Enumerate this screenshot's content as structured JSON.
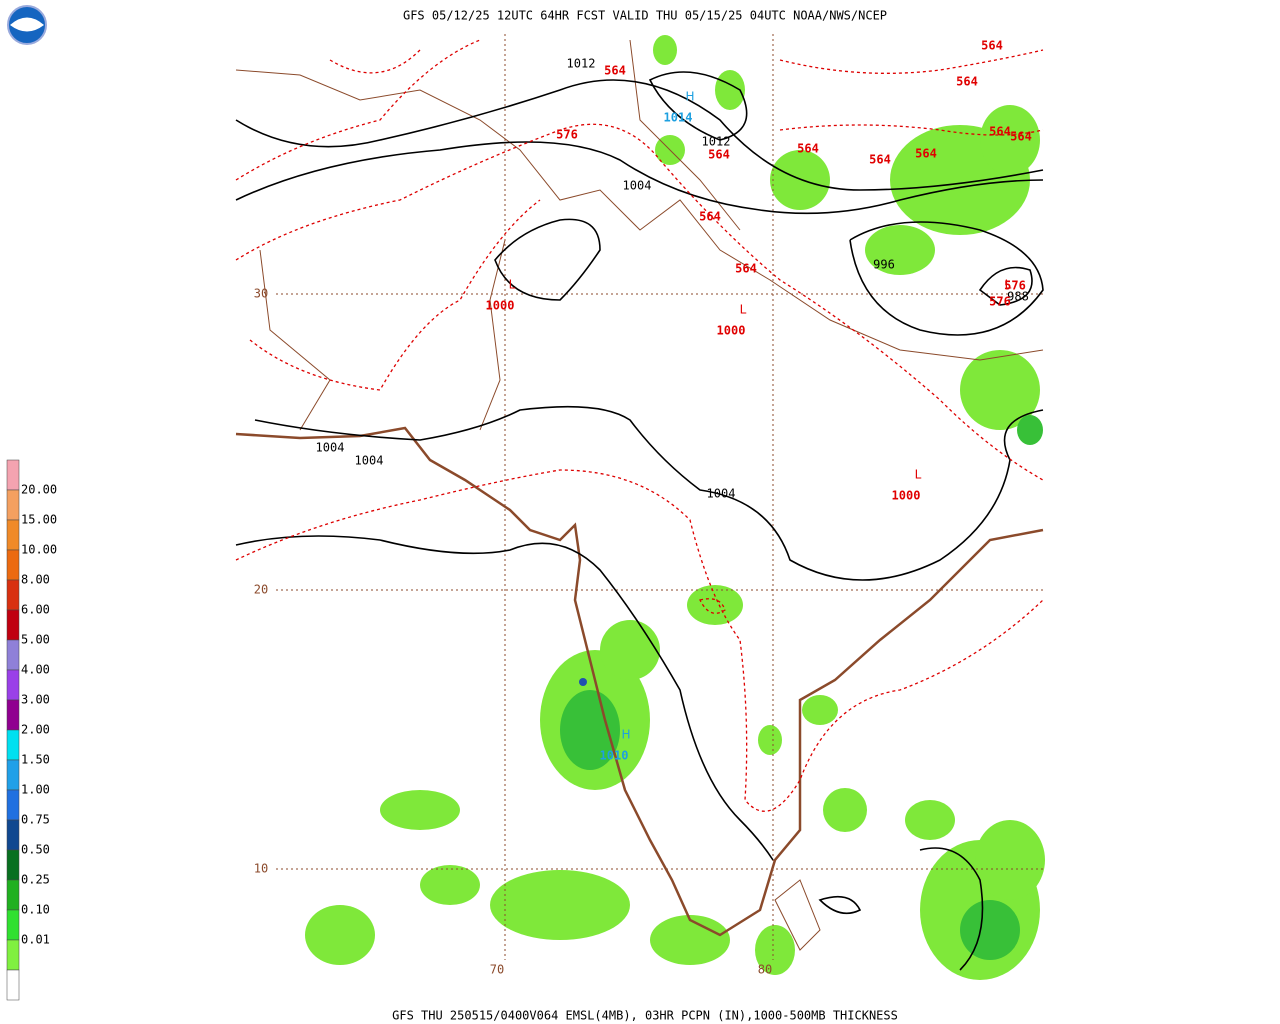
{
  "header": {
    "title": "GFS 05/12/25 12UTC 64HR FCST VALID THU 05/15/25 04UTC NOAA/NWS/NCEP"
  },
  "footer": {
    "caption": "GFS THU 250515/0400V064 EMSL(4MB), 03HR PCPN (IN),1000-500MB THICKNESS"
  },
  "legend": {
    "items": [
      {
        "label": null,
        "color": "#f4a3b0"
      },
      {
        "label": "20.00",
        "color": "#f4a060"
      },
      {
        "label": "15.00",
        "color": "#f08a28"
      },
      {
        "label": "10.00",
        "color": "#ec6a10"
      },
      {
        "label": "8.00",
        "color": "#d83010"
      },
      {
        "label": "6.00",
        "color": "#c00010"
      },
      {
        "label": "5.00",
        "color": "#8f80d8"
      },
      {
        "label": "4.00",
        "color": "#9a40e8"
      },
      {
        "label": "3.00",
        "color": "#900090"
      },
      {
        "label": "2.00",
        "color": "#00e0f0"
      },
      {
        "label": "1.50",
        "color": "#20a0e8"
      },
      {
        "label": "1.00",
        "color": "#2070e0"
      },
      {
        "label": "0.75",
        "color": "#104890"
      },
      {
        "label": "0.50",
        "color": "#087020"
      },
      {
        "label": "0.25",
        "color": "#20b020"
      },
      {
        "label": "0.10",
        "color": "#30e030"
      },
      {
        "label": "0.01",
        "color": "#80f040"
      }
    ]
  },
  "grid": {
    "latitudes": [
      "30",
      "20",
      "10"
    ],
    "longitudes": [
      "70",
      "80"
    ]
  },
  "pressure_centers": [
    {
      "symbol": "H",
      "value": "1014",
      "color": "#1ea0e0"
    },
    {
      "symbol": "L",
      "value": "1000",
      "color": "#e00000"
    },
    {
      "symbol": "L",
      "value": "1000",
      "color": "#e00000"
    },
    {
      "symbol": "L",
      "value": "1000",
      "color": "#e00000"
    },
    {
      "symbol": "H",
      "value": "1010",
      "color": "#1ea0e0"
    },
    {
      "symbol": "L",
      "value": null,
      "color": "#e00000"
    }
  ],
  "isobar_labels": [
    "1012",
    "1012",
    "1004",
    "996",
    "988",
    "1004",
    "1004",
    "1004"
  ],
  "thickness_labels": [
    "564",
    "576",
    "564",
    "564",
    "564",
    "564",
    "564",
    "564",
    "564",
    "564",
    "564",
    "564",
    "576",
    "576"
  ]
}
